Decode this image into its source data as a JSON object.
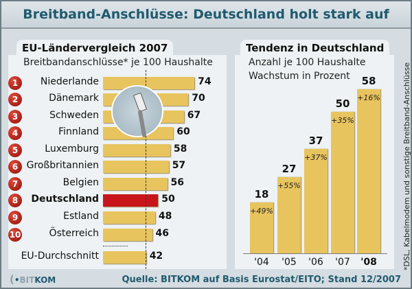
{
  "title": "Breitband-Anschlüsse: Deutschland holt stark auf",
  "chart_data": [
    {
      "type": "bar",
      "orientation": "horizontal",
      "title": "EU-Ländervergleich 2007",
      "subtitle": "Breitbandanschlüsse* je 100 Haushalte",
      "categories": [
        "Niederlande",
        "Dänemark",
        "Schweden",
        "Finnland",
        "Luxemburg",
        "Großbritannien",
        "Belgien",
        "Deutschland",
        "Estland",
        "Österreich",
        "EU-Durchschnitt"
      ],
      "ranks": [
        "1",
        "2",
        "3",
        "4",
        "5",
        "6",
        "7",
        "8",
        "9",
        "10",
        ""
      ],
      "values": [
        74,
        70,
        67,
        60,
        58,
        57,
        56,
        50,
        48,
        46,
        42
      ],
      "highlight": "Deutschland",
      "colors": {
        "bar": "#e8c45e",
        "highlight": "#c8141b",
        "badge": "#b01a12"
      }
    },
    {
      "type": "bar",
      "title": "Tendenz in Deutschland",
      "subtitle": [
        "Anzahl je 100 Haushalte",
        "Wachstum in Prozent"
      ],
      "categories": [
        "'04",
        "'05",
        "'06",
        "'07",
        "'08"
      ],
      "values": [
        18,
        27,
        37,
        50,
        58
      ],
      "growth_labels": [
        "+49%",
        "+55%",
        "+37%",
        "+35%",
        "+16%"
      ],
      "colors": {
        "bar": "#e8c45e"
      }
    }
  ],
  "footnote": "*DSL, Kabelmodem und sonstige Breitband-Anschlüsse",
  "source": "Quelle: BITKOM auf Basis Eurostat/EITO; Stand 12/2007",
  "logo": {
    "bit": "BIT",
    "kom": "KOM"
  },
  "title_color": "#1f5a6e"
}
